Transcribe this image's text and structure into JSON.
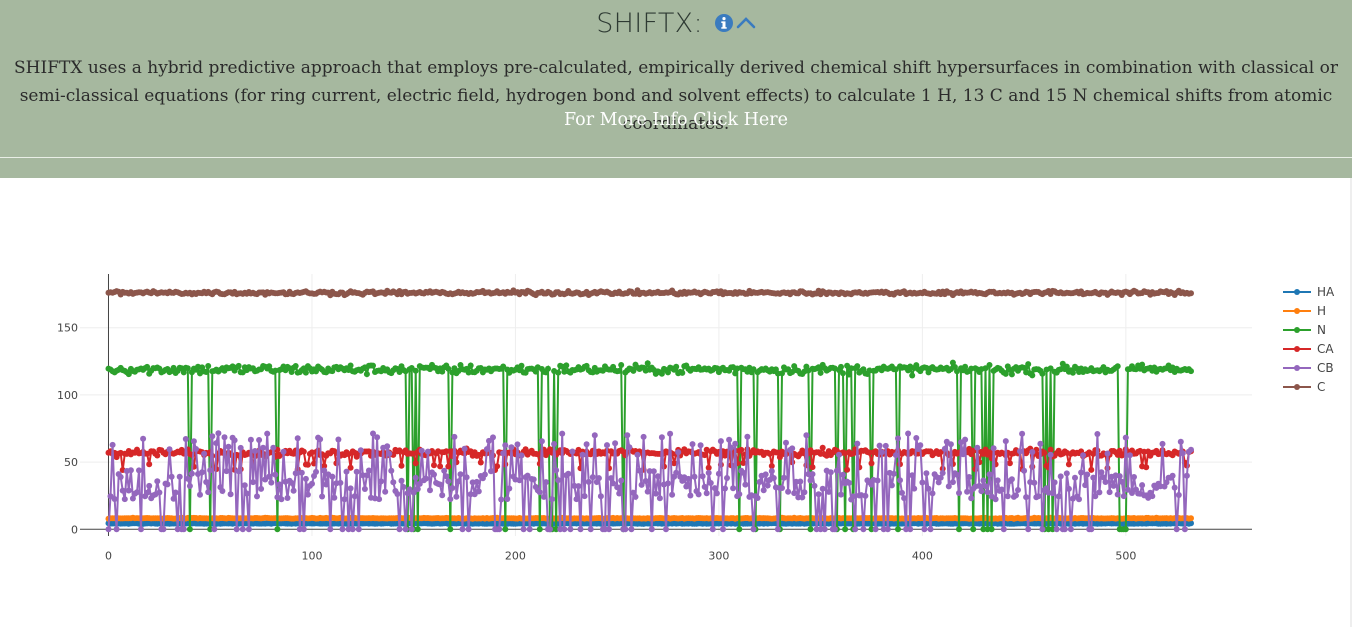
{
  "header": {
    "title": "SHIFTX:",
    "description": "SHIFTX uses a hybrid predictive approach that employs pre-calculated, empirically derived chemical shift hypersurfaces in combination with classical or semi-classical equations (for ring current, electric field, hydrogen bond and solvent effects) to calculate 1 H, 13 C and 15 N chemical shifts from atomic coordinates.",
    "link": "For More Info Click Here",
    "info_icon": "info-circle-icon",
    "collapse_icon": "chevron-up-icon"
  },
  "colors": {
    "banner": "#a6b89f",
    "HA": "#1f77b4",
    "H": "#ff7f0e",
    "N": "#2ca02c",
    "CA": "#d62728",
    "CB": "#9467bd",
    "C": "#8c564b"
  },
  "chart_data": {
    "type": "line",
    "mode": "lines+markers",
    "title": "",
    "xlabel": "",
    "ylabel": "",
    "x_range": [
      0,
      532
    ],
    "xlim": [
      -14,
      562
    ],
    "ylim": [
      -5,
      190
    ],
    "xticks": [
      0,
      100,
      200,
      300,
      400,
      500
    ],
    "yticks": [
      0,
      50,
      100,
      150
    ],
    "grid": true,
    "legend_position": "right",
    "series": [
      {
        "name": "HA",
        "color": "#1f77b4",
        "typical": 4.3,
        "min": 3.6,
        "max": 5.6
      },
      {
        "name": "H",
        "color": "#ff7f0e",
        "typical": 8.2,
        "min": 6.9,
        "max": 9.6
      },
      {
        "name": "N",
        "color": "#2ca02c",
        "typical": 119,
        "min": 0,
        "max": 132,
        "zero_at": [
          40,
          50,
          83,
          147,
          150,
          152,
          168,
          195,
          212,
          217,
          218,
          220,
          253,
          310,
          318,
          330,
          345,
          358,
          362,
          366,
          375,
          388,
          418,
          425,
          430,
          432,
          434,
          460,
          462,
          464,
          497,
          498,
          499,
          500
        ]
      },
      {
        "name": "CA",
        "color": "#d62728",
        "typical": 57,
        "min": 42,
        "max": 66
      },
      {
        "name": "CB",
        "color": "#9467bd",
        "typical": 35,
        "min": 0,
        "max": 72
      },
      {
        "name": "C",
        "color": "#8c564b",
        "typical": 176,
        "min": 170,
        "max": 180
      }
    ]
  }
}
